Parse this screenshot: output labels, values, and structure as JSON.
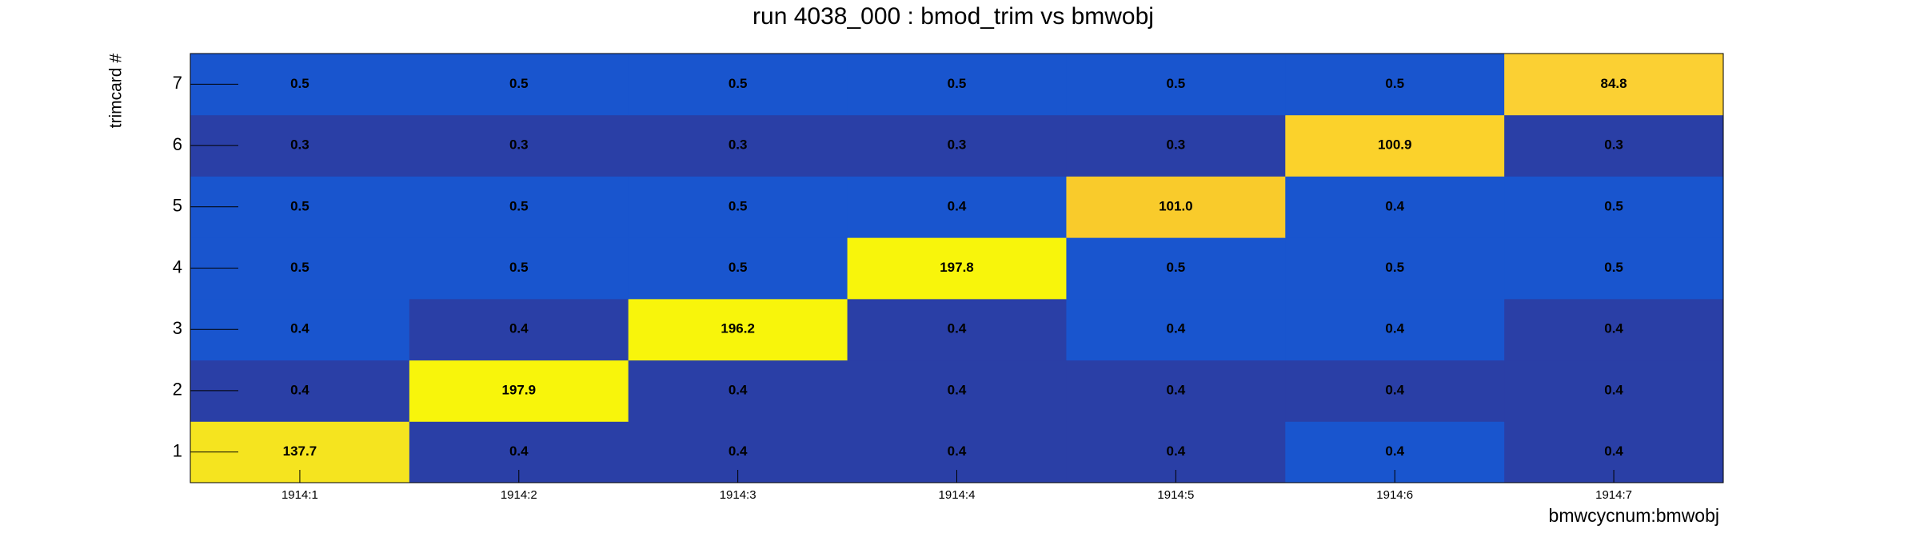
{
  "chart_data": {
    "type": "heatmap",
    "title": "run 4038_000 : bmod_trim vs bmwobj",
    "xlabel": "bmwcycnum:bmwobj",
    "ylabel": "trimcard #",
    "categories": [
      "1914:1",
      "1914:2",
      "1914:3",
      "1914:4",
      "1914:5",
      "1914:6",
      "1914:7"
    ],
    "y_categories": [
      1,
      2,
      3,
      4,
      5,
      6,
      7
    ],
    "values": [
      [
        137.7,
        0.4,
        0.4,
        0.4,
        0.4,
        0.4,
        0.4
      ],
      [
        0.4,
        197.9,
        0.4,
        0.4,
        0.4,
        0.4,
        0.4
      ],
      [
        0.4,
        0.4,
        196.2,
        0.4,
        0.4,
        0.4,
        0.4
      ],
      [
        0.5,
        0.5,
        0.5,
        197.8,
        0.5,
        0.5,
        0.5
      ],
      [
        0.5,
        0.5,
        0.5,
        0.4,
        101,
        0.4,
        0.5
      ],
      [
        0.3,
        0.3,
        0.3,
        0.3,
        0.3,
        100.9,
        0.3
      ],
      [
        0.5,
        0.5,
        0.5,
        0.5,
        0.5,
        0.5,
        84.8
      ]
    ],
    "value_labels": [
      [
        "137.7",
        "0.4",
        "0.4",
        "0.4",
        "0.4",
        "0.4",
        "0.4"
      ],
      [
        "0.4",
        "197.9",
        "0.4",
        "0.4",
        "0.4",
        "0.4",
        "0.4"
      ],
      [
        "0.4",
        "0.4",
        "196.2",
        "0.4",
        "0.4",
        "0.4",
        "0.4"
      ],
      [
        "0.5",
        "0.5",
        "0.5",
        "197.8",
        "0.5",
        "0.5",
        "0.5"
      ],
      [
        "0.5",
        "0.5",
        "0.5",
        "0.4",
        "101.0",
        "0.4",
        "0.5"
      ],
      [
        "0.3",
        "0.3",
        "0.3",
        "0.3",
        "0.3",
        "100.9",
        "0.3"
      ],
      [
        "0.5",
        "0.5",
        "0.5",
        "0.5",
        "0.5",
        "0.5",
        "84.8"
      ]
    ],
    "colors": [
      [
        "#f5e41f",
        "#2a3fa6",
        "#2a3fa6",
        "#2a3fa6",
        "#2a3fa6",
        "#1955ce",
        "#2a3fa6"
      ],
      [
        "#2a3fa6",
        "#f8f50b",
        "#2a3fa6",
        "#2a3fa6",
        "#2a3fa6",
        "#2a3fa6",
        "#2a3fa6"
      ],
      [
        "#1955ce",
        "#2a3fa6",
        "#f8f50b",
        "#2a3fa6",
        "#1955ce",
        "#1955ce",
        "#2a3fa6"
      ],
      [
        "#1955ce",
        "#1955ce",
        "#1955ce",
        "#f8f50b",
        "#1955ce",
        "#1955ce",
        "#1955ce"
      ],
      [
        "#1955ce",
        "#1955ce",
        "#1955ce",
        "#1955ce",
        "#f9cb2b",
        "#1955ce",
        "#1955ce"
      ],
      [
        "#2a3fa6",
        "#2a3fa6",
        "#2a3fa6",
        "#2a3fa6",
        "#2a3fa6",
        "#fbd22b",
        "#2a3fa6"
      ],
      [
        "#1955ce",
        "#1955ce",
        "#1955ce",
        "#1955ce",
        "#1955ce",
        "#1955ce",
        "#fbd033"
      ]
    ]
  }
}
